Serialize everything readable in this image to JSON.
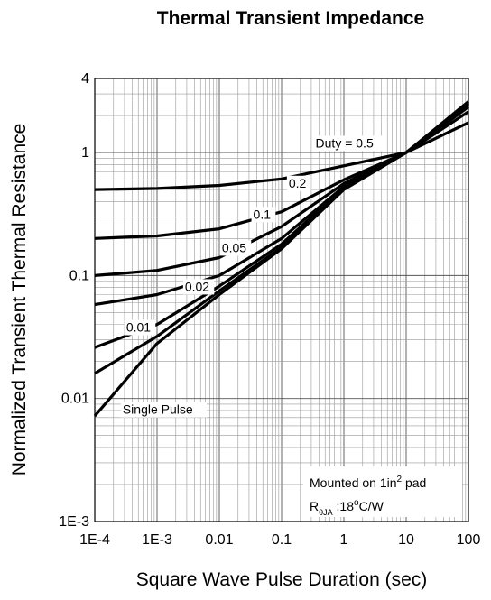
{
  "chart_data": {
    "type": "line",
    "title": "Thermal Transient Impedance",
    "xlabel": "Square Wave Pulse Duration (sec)",
    "ylabel": "Normalized Transient Thermal Resistance",
    "xscale": "log",
    "yscale": "log",
    "xlim": [
      0.0001,
      100
    ],
    "ylim": [
      0.001,
      4
    ],
    "grid": true,
    "x_ticks": [
      {
        "value": 0.0001,
        "label": "1E-4"
      },
      {
        "value": 0.001,
        "label": "1E-3"
      },
      {
        "value": 0.01,
        "label": "0.01"
      },
      {
        "value": 0.1,
        "label": "0.1"
      },
      {
        "value": 1,
        "label": "1"
      },
      {
        "value": 10,
        "label": "10"
      },
      {
        "value": 100,
        "label": "100"
      }
    ],
    "y_ticks": [
      {
        "value": 0.001,
        "label": "1E-3"
      },
      {
        "value": 0.01,
        "label": "0.01"
      },
      {
        "value": 0.1,
        "label": "0.1"
      },
      {
        "value": 1,
        "label": "1"
      },
      {
        "value": 4,
        "label": "4"
      }
    ],
    "series": [
      {
        "name": "Duty = 0.5",
        "label_at": [
          0.35,
          1.1
        ],
        "x": [
          0.0001,
          0.001,
          0.01,
          0.1,
          1,
          10,
          100
        ],
        "y": [
          0.5,
          0.51,
          0.54,
          0.61,
          0.78,
          1.0,
          1.75
        ]
      },
      {
        "name": "0.2",
        "label_at": [
          0.13,
          0.52
        ],
        "x": [
          0.0001,
          0.001,
          0.01,
          0.1,
          1,
          10,
          100
        ],
        "y": [
          0.2,
          0.21,
          0.24,
          0.33,
          0.6,
          1.0,
          2.15
        ]
      },
      {
        "name": "0.1",
        "label_at": [
          0.035,
          0.29
        ],
        "x": [
          0.0001,
          0.001,
          0.01,
          0.1,
          1,
          10,
          100
        ],
        "y": [
          0.1,
          0.11,
          0.14,
          0.25,
          0.56,
          1.0,
          2.35
        ]
      },
      {
        "name": "0.05",
        "label_at": [
          0.011,
          0.155
        ],
        "x": [
          0.0001,
          0.001,
          0.01,
          0.1,
          1,
          10,
          100
        ],
        "y": [
          0.058,
          0.07,
          0.1,
          0.2,
          0.53,
          1.0,
          2.45
        ]
      },
      {
        "name": "0.02",
        "label_at": [
          0.0028,
          0.075
        ],
        "x": [
          0.0001,
          0.001,
          0.01,
          0.1,
          1,
          10,
          100
        ],
        "y": [
          0.026,
          0.04,
          0.082,
          0.18,
          0.52,
          1.0,
          2.5
        ]
      },
      {
        "name": "0.01",
        "label_at": [
          0.00032,
          0.035
        ],
        "x": [
          0.0001,
          0.001,
          0.01,
          0.1,
          1,
          10,
          100
        ],
        "y": [
          0.016,
          0.032,
          0.075,
          0.17,
          0.51,
          1.0,
          2.55
        ]
      },
      {
        "name": "Single Pulse",
        "label_at": [
          0.00028,
          0.0075
        ],
        "x": [
          0.0001,
          0.001,
          0.01,
          0.1,
          1,
          10,
          100
        ],
        "y": [
          0.0072,
          0.028,
          0.07,
          0.165,
          0.5,
          1.0,
          2.6
        ]
      }
    ],
    "annotation": {
      "line1": "Mounted on 1in",
      "line1_sup": "2",
      "line1_tail": " pad",
      "line2_main": "R",
      "line2_sub": "θJA",
      "line2_tail": " :18",
      "line2_sup": "o",
      "line2_end": "C/W"
    }
  }
}
